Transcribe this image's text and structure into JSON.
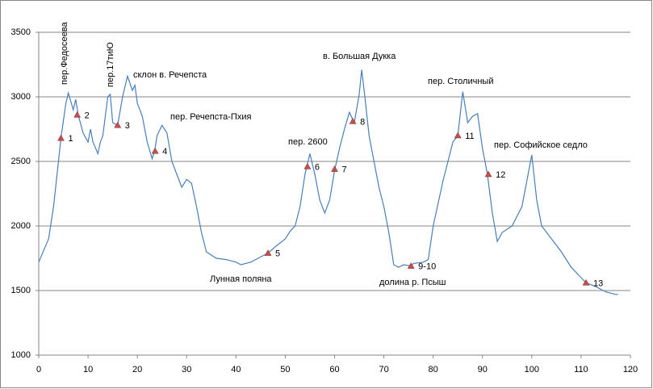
{
  "chart_data": {
    "type": "line",
    "series": [
      {
        "color": "#4a7ebb",
        "x": [
          0,
          2,
          3,
          4,
          4.5,
          5.5,
          6,
          7,
          7.5,
          8,
          9,
          10,
          10.5,
          11,
          12,
          12.5,
          13,
          14,
          14.5,
          15,
          16,
          17,
          18,
          19,
          19.5,
          20,
          21,
          22,
          23,
          23.5,
          24,
          25,
          26,
          27,
          28,
          29,
          30,
          31,
          32,
          33,
          34,
          36,
          38,
          40,
          41,
          43,
          45,
          46.5,
          48,
          50,
          51,
          52,
          53,
          54,
          55,
          56,
          57,
          58,
          59,
          60,
          61,
          62,
          63,
          64,
          65,
          65.5,
          66,
          67,
          68,
          69,
          70,
          71,
          72,
          73,
          74,
          75.5,
          76,
          78,
          79,
          80,
          82,
          83,
          84,
          85,
          86,
          87,
          88,
          89,
          90,
          91,
          92,
          93,
          94,
          96,
          98,
          99,
          100,
          101,
          102,
          104,
          106,
          108,
          110,
          111,
          113,
          115,
          117,
          117.5
        ],
        "values": [
          1720,
          1900,
          2150,
          2500,
          2680,
          2950,
          3030,
          2900,
          2980,
          2860,
          2720,
          2650,
          2750,
          2650,
          2560,
          2650,
          2700,
          3000,
          3020,
          2800,
          2780,
          3000,
          3160,
          3050,
          3090,
          2950,
          2850,
          2650,
          2520,
          2580,
          2700,
          2780,
          2720,
          2500,
          2400,
          2300,
          2360,
          2330,
          2150,
          1950,
          1800,
          1750,
          1740,
          1720,
          1700,
          1720,
          1760,
          1790,
          1840,
          1900,
          1960,
          2000,
          2150,
          2400,
          2560,
          2400,
          2200,
          2100,
          2200,
          2430,
          2600,
          2750,
          2880,
          2800,
          3020,
          3210,
          3050,
          2700,
          2500,
          2300,
          2150,
          1950,
          1700,
          1680,
          1700,
          1690,
          1710,
          1720,
          1740,
          2000,
          2350,
          2500,
          2650,
          2700,
          3040,
          2800,
          2850,
          2870,
          2600,
          2400,
          2100,
          1880,
          1950,
          2000,
          2150,
          2350,
          2550,
          2200,
          2000,
          1900,
          1800,
          1680,
          1600,
          1560,
          1530,
          1490,
          1470,
          1470
        ]
      }
    ],
    "markers": {
      "color": "#c0504d",
      "x": [
        4.5,
        7.8,
        16,
        23.6,
        46.5,
        54.5,
        60,
        63.7,
        75.5,
        85,
        91.2,
        111
      ],
      "values": [
        2680,
        2860,
        2780,
        2580,
        1790,
        2460,
        2440,
        2810,
        1690,
        2700,
        2400,
        1560
      ],
      "labels": [
        "1",
        "2",
        "3",
        "4",
        "5",
        "6",
        "7",
        "8",
        "9-10",
        "11",
        "12",
        "13"
      ]
    },
    "annotations": [
      "пер.Федосеева",
      "пер.17тиЮ",
      "склон в. Речепста",
      "пер. Речепста-Пхия",
      "Лунная поляна",
      "пер. 2600",
      "в. Большая Дукка",
      "долина р. Псыш",
      "пер. Столичный",
      "пер. Софийское седло"
    ],
    "xlim": [
      0,
      120
    ],
    "xticks": [
      0,
      10,
      20,
      30,
      40,
      50,
      60,
      70,
      80,
      90,
      100,
      110,
      120
    ],
    "ylim": [
      1000,
      3500
    ],
    "yticks": [
      1000,
      1500,
      2000,
      2500,
      3000,
      3500
    ],
    "grid": true
  }
}
